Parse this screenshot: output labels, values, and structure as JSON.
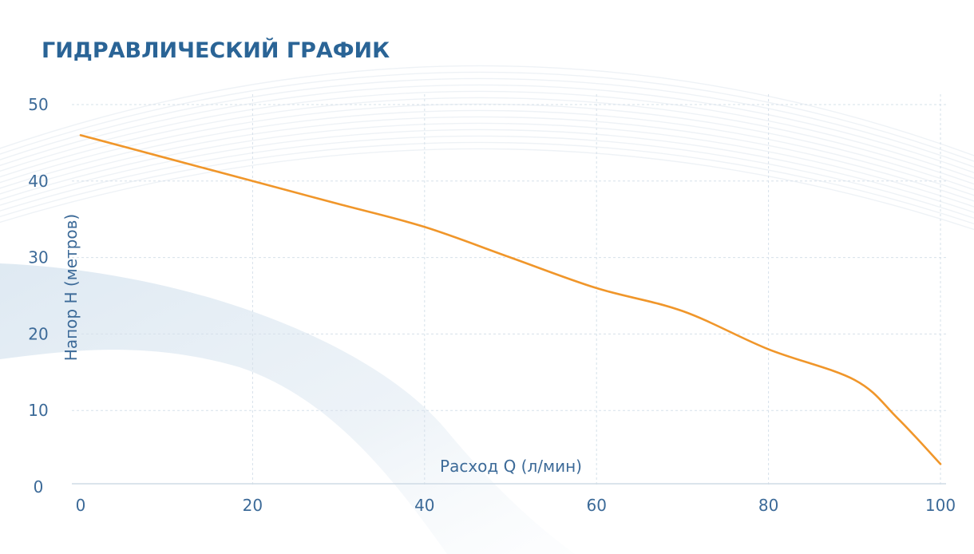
{
  "chart_data": {
    "type": "line",
    "title": "ГИДРАВЛИЧЕСКИЙ ГРАФИК",
    "xlabel": "Расход Q (л/мин)",
    "ylabel": "Напор H (метров)",
    "xlim": [
      0,
      100
    ],
    "ylim": [
      0,
      50
    ],
    "x_ticks": [
      0,
      20,
      40,
      60,
      80,
      100
    ],
    "y_ticks": [
      0,
      10,
      20,
      30,
      40,
      50
    ],
    "grid": true,
    "series": [
      {
        "color": "#f0962a",
        "x": [
          0,
          10,
          20,
          30,
          40,
          50,
          60,
          70,
          80,
          90,
          95,
          100
        ],
        "y": [
          46,
          43,
          40,
          37,
          34,
          30,
          26,
          23,
          18,
          14,
          9,
          3
        ]
      }
    ]
  }
}
